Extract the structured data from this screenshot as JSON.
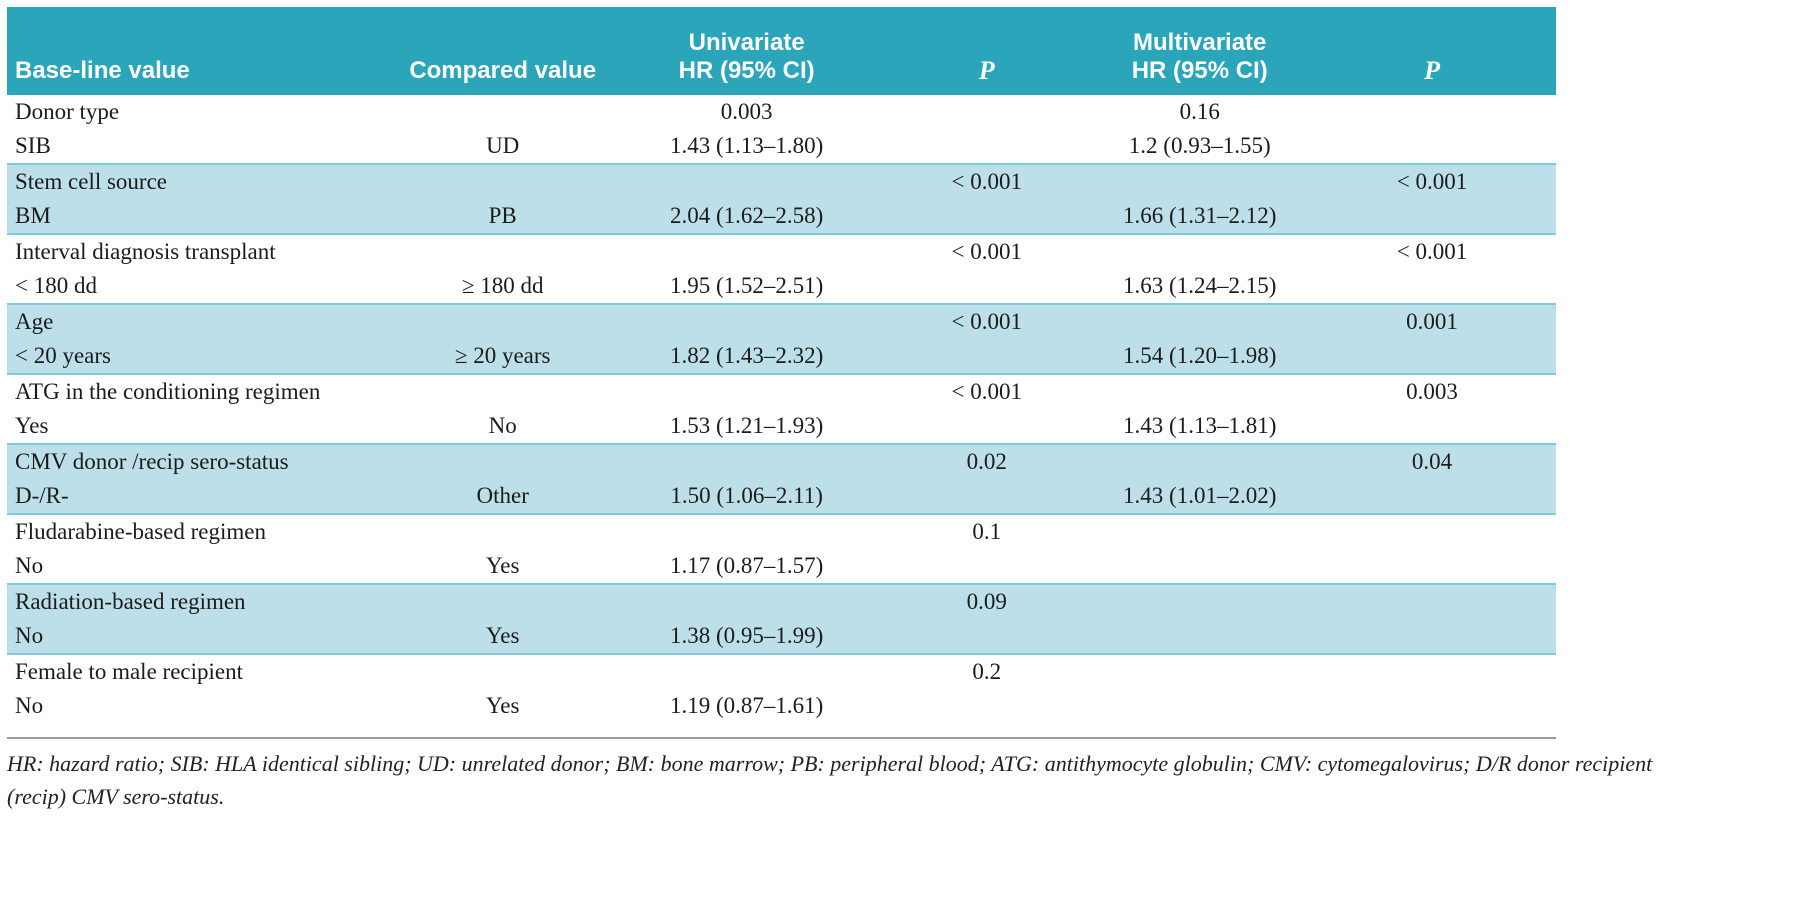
{
  "colors": {
    "header_bg": "#2aa5ba",
    "row_alt_blue": "#bddfe9",
    "group_separator": "#7ecbdb",
    "footnote_rule": "#9b9b9b",
    "header_text": "#ffffff",
    "body_text": "#1b1b1b"
  },
  "table": {
    "header": {
      "baseline": "Base-line value",
      "compared": "Compared value",
      "univariate_line1": "Univariate",
      "univariate_line2": "HR (95% CI)",
      "p_univariate": "P",
      "multivariate_line1": "Multivariate",
      "multivariate_line2": "HR (95% CI)",
      "p_multivariate": "P"
    },
    "groups": [
      {
        "rows": [
          [
            "Donor type",
            "",
            "0.003",
            "",
            "0.16",
            ""
          ],
          [
            "SIB",
            "UD",
            "1.43 (1.13–1.80)",
            "",
            "1.2 (0.93–1.55)",
            ""
          ]
        ]
      },
      {
        "rows": [
          [
            "Stem cell source",
            "",
            "",
            "< 0.001",
            "",
            "< 0.001"
          ],
          [
            "BM",
            "PB",
            "2.04 (1.62–2.58)",
            "",
            "1.66 (1.31–2.12)",
            ""
          ]
        ]
      },
      {
        "rows": [
          [
            "Interval diagnosis transplant",
            "",
            "",
            "< 0.001",
            "",
            "< 0.001"
          ],
          [
            "< 180 dd",
            "≥ 180 dd",
            "1.95 (1.52–2.51)",
            "",
            "1.63 (1.24–2.15)",
            ""
          ]
        ]
      },
      {
        "rows": [
          [
            "Age",
            "",
            "",
            "< 0.001",
            "",
            "0.001"
          ],
          [
            "< 20 years",
            "≥ 20 years",
            "1.82 (1.43–2.32)",
            "",
            "1.54 (1.20–1.98)",
            ""
          ]
        ]
      },
      {
        "rows": [
          [
            "ATG in the conditioning regimen",
            "",
            "",
            "< 0.001",
            "",
            "0.003"
          ],
          [
            "Yes",
            "No",
            "1.53 (1.21–1.93)",
            "",
            "1.43 (1.13–1.81)",
            ""
          ]
        ]
      },
      {
        "rows": [
          [
            "CMV donor /recip sero-status",
            "",
            "",
            "0.02",
            "",
            "0.04"
          ],
          [
            "D-/R-",
            "Other",
            "1.50 (1.06–2.11)",
            "",
            "1.43 (1.01–2.02)",
            ""
          ]
        ]
      },
      {
        "rows": [
          [
            "Fludarabine-based regimen",
            "",
            "",
            "0.1",
            "",
            ""
          ],
          [
            "No",
            "Yes",
            "1.17 (0.87–1.57)",
            "",
            "",
            ""
          ]
        ]
      },
      {
        "rows": [
          [
            "Radiation-based regimen",
            "",
            "",
            "0.09",
            "",
            ""
          ],
          [
            "No",
            "Yes",
            "1.38 (0.95–1.99)",
            "",
            "",
            ""
          ]
        ]
      },
      {
        "rows": [
          [
            "Female to male recipient",
            "",
            "",
            "0.2",
            "",
            ""
          ],
          [
            "No",
            "Yes",
            "1.19 (0.87–1.61)",
            "",
            "",
            ""
          ]
        ]
      }
    ],
    "footnote_line1": "HR: hazard ratio; SIB: HLA identical sibling; UD: unrelated donor; BM: bone marrow; PB: peripheral blood; ATG: antithymocyte globulin; CMV: cytomegalovirus; D/R donor recipient",
    "footnote_line2": "(recip) CMV sero-status."
  }
}
